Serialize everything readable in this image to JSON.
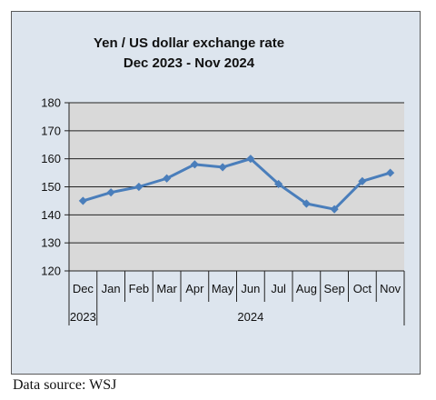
{
  "chart_data": {
    "type": "line",
    "title": "Yen / US dollar exchange rate",
    "subtitle": "Dec 2023  -  Nov 2024",
    "categories": [
      "Dec",
      "Jan",
      "Feb",
      "Mar",
      "Apr",
      "May",
      "Jun",
      "Jul",
      "Aug",
      "Sep",
      "Oct",
      "Nov"
    ],
    "year_labels": [
      {
        "label": "2023",
        "span": [
          0,
          0
        ]
      },
      {
        "label": "2024",
        "span": [
          1,
          11
        ]
      }
    ],
    "series": [
      {
        "values": [
          145,
          148,
          150,
          153,
          158,
          157,
          160,
          151,
          144,
          142,
          152,
          155
        ]
      }
    ],
    "ylim": [
      120,
      180
    ],
    "yticks": [
      120,
      130,
      140,
      150,
      160,
      170,
      180
    ],
    "grid": true,
    "legend": "none",
    "colors": {
      "line": "#4a7ebb",
      "plot_bg": "#d9d9d9",
      "chart_bg": "#dde5ee"
    }
  },
  "footer": {
    "source": "Data source: WSJ"
  }
}
